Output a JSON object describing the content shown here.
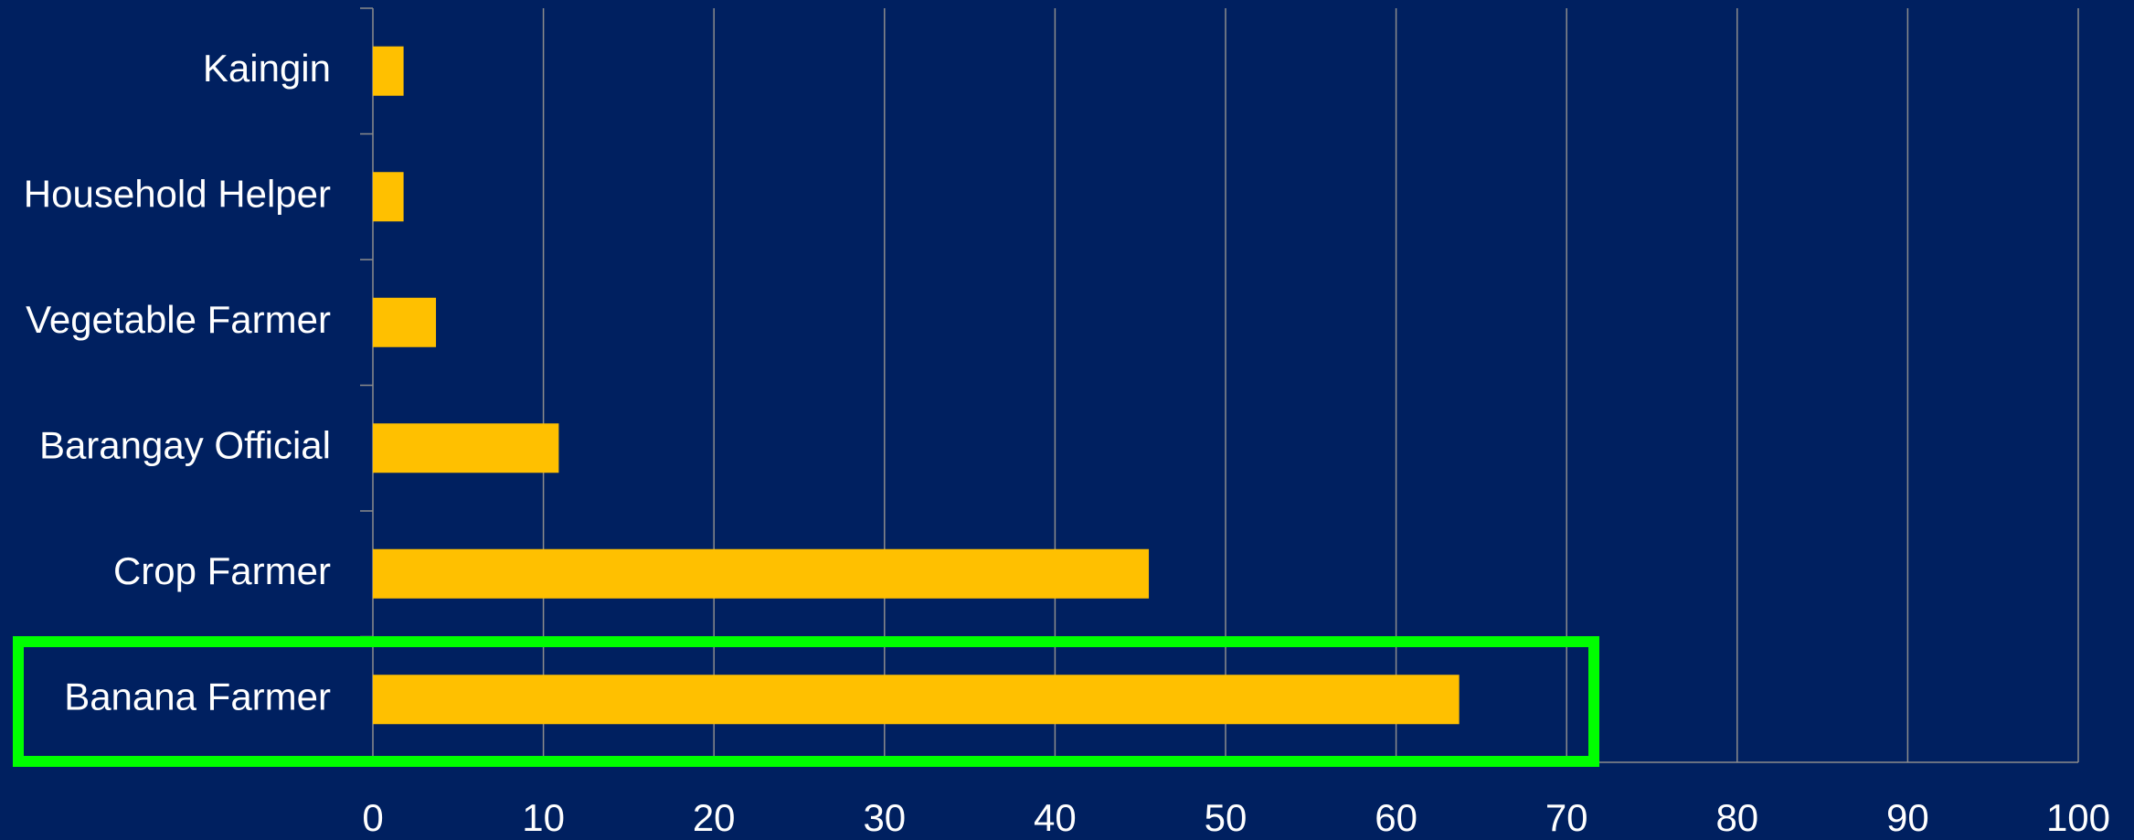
{
  "chart_data": {
    "type": "bar",
    "orientation": "horizontal",
    "categories": [
      "Kaingin",
      "Household Helper",
      "Vegetable Farmer",
      "Barangay Official",
      "Crop Farmer",
      "Banana Farmer"
    ],
    "values": [
      1.8,
      1.8,
      3.7,
      10.9,
      45.5,
      63.7
    ],
    "color": "#ffc000",
    "xlim": [
      0,
      100
    ],
    "xticks": [
      0,
      10,
      20,
      30,
      40,
      50,
      60,
      70,
      80,
      90,
      100
    ],
    "grid": true
  }
}
